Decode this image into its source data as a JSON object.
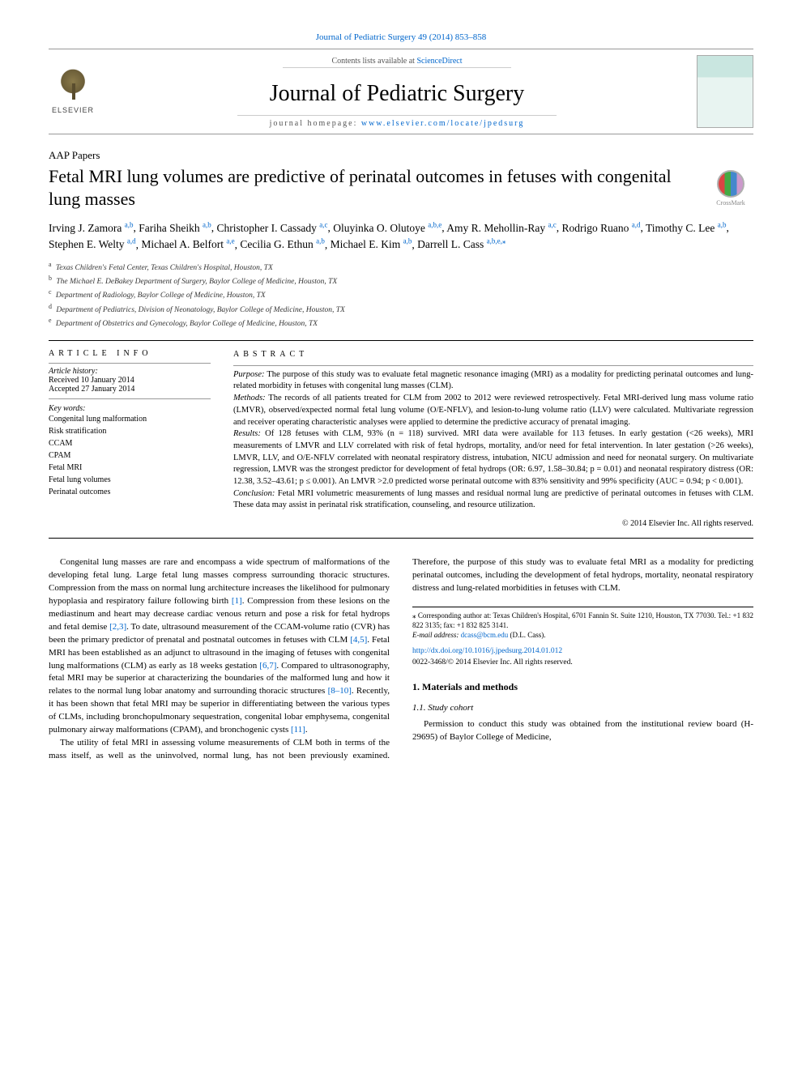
{
  "topCitation": "Journal of Pediatric Surgery 49 (2014) 853–858",
  "header": {
    "contentsLine_pre": "Contents lists available at ",
    "contentsLine_link": "ScienceDirect",
    "journalName": "Journal of Pediatric Surgery",
    "homepage_pre": "journal homepage: ",
    "homepage_link": "www.elsevier.com/locate/jpedsurg",
    "elsevierLabel": "ELSEVIER",
    "coverLabel": "Journal of Pediatric Surgery"
  },
  "articleType": "AAP Papers",
  "title": "Fetal MRI lung volumes are predictive of perinatal outcomes in fetuses with congenital lung masses",
  "crossmarkLabel": "CrossMark",
  "authors": [
    {
      "name": "Irving J. Zamora",
      "aff": "a,b"
    },
    {
      "name": "Fariha Sheikh",
      "aff": "a,b"
    },
    {
      "name": "Christopher I. Cassady",
      "aff": "a,c"
    },
    {
      "name": "Oluyinka O. Olutoye",
      "aff": "a,b,e"
    },
    {
      "name": "Amy R. Mehollin-Ray",
      "aff": "a,c"
    },
    {
      "name": "Rodrigo Ruano",
      "aff": "a,d"
    },
    {
      "name": "Timothy C. Lee",
      "aff": "a,b"
    },
    {
      "name": "Stephen E. Welty",
      "aff": "a,d"
    },
    {
      "name": "Michael A. Belfort",
      "aff": "a,e"
    },
    {
      "name": "Cecilia G. Ethun",
      "aff": "a,b"
    },
    {
      "name": "Michael E. Kim",
      "aff": "a,b"
    },
    {
      "name": "Darrell L. Cass",
      "aff": "a,b,e,",
      "star": true
    }
  ],
  "affiliations": [
    {
      "key": "a",
      "text": "Texas Children's Fetal Center, Texas Children's Hospital, Houston, TX"
    },
    {
      "key": "b",
      "text": "The Michael E. DeBakey Department of Surgery, Baylor College of Medicine, Houston, TX"
    },
    {
      "key": "c",
      "text": "Department of Radiology, Baylor College of Medicine, Houston, TX"
    },
    {
      "key": "d",
      "text": "Department of Pediatrics, Division of Neonatology, Baylor College of Medicine, Houston, TX"
    },
    {
      "key": "e",
      "text": "Department of Obstetrics and Gynecology, Baylor College of Medicine, Houston, TX"
    }
  ],
  "info": {
    "heading": "ARTICLE INFO",
    "historyLabel": "Article history:",
    "received": "Received 10 January 2014",
    "accepted": "Accepted 27 January 2014",
    "keywordsLabel": "Key words:",
    "keywords": [
      "Congenital lung malformation",
      "Risk stratification",
      "CCAM",
      "CPAM",
      "Fetal MRI",
      "Fetal lung volumes",
      "Perinatal outcomes"
    ]
  },
  "abstract": {
    "heading": "ABSTRACT",
    "purposeLabel": "Purpose:",
    "purpose": " The purpose of this study was to evaluate fetal magnetic resonance imaging (MRI) as a modality for predicting perinatal outcomes and lung-related morbidity in fetuses with congenital lung masses (CLM).",
    "methodsLabel": "Methods:",
    "methods": " The records of all patients treated for CLM from 2002 to 2012 were reviewed retrospectively. Fetal MRI-derived lung mass volume ratio (LMVR), observed/expected normal fetal lung volume (O/E-NFLV), and lesion-to-lung volume ratio (LLV) were calculated. Multivariate regression and receiver operating characteristic analyses were applied to determine the predictive accuracy of prenatal imaging.",
    "resultsLabel": "Results:",
    "results": " Of 128 fetuses with CLM, 93% (n = 118) survived. MRI data were available for 113 fetuses. In early gestation (<26 weeks), MRI measurements of LMVR and LLV correlated with risk of fetal hydrops, mortality, and/or need for fetal intervention. In later gestation (>26 weeks), LMVR, LLV, and O/E-NFLV correlated with neonatal respiratory distress, intubation, NICU admission and need for neonatal surgery. On multivariate regression, LMVR was the strongest predictor for development of fetal hydrops (OR: 6.97, 1.58–30.84; p = 0.01) and neonatal respiratory distress (OR: 12.38, 3.52–43.61; p ≤ 0.001). An LMVR >2.0 predicted worse perinatal outcome with 83% sensitivity and 99% specificity (AUC = 0.94; p < 0.001).",
    "conclusionLabel": "Conclusion:",
    "conclusion": " Fetal MRI volumetric measurements of lung masses and residual normal lung are predictive of perinatal outcomes in fetuses with CLM. These data may assist in perinatal risk stratification, counseling, and resource utilization.",
    "copyright": "© 2014 Elsevier Inc. All rights reserved."
  },
  "body": {
    "p1a": "Congenital lung masses are rare and encompass a wide spectrum of malformations of the developing fetal lung. Large fetal lung masses compress surrounding thoracic structures. Compression from the mass on normal lung architecture increases the likelihood for pulmonary hypoplasia and respiratory failure following birth ",
    "r1": "[1]",
    "p1b": ". Compression from these lesions on the mediastinum and heart may decrease cardiac venous return and pose a risk for fetal hydrops and fetal demise ",
    "r23": "[2,3]",
    "p1c": ". To date, ultrasound measurement of the CCAM-volume ratio (CVR) has been the primary predictor of prenatal and postnatal outcomes in fetuses with CLM ",
    "r45": "[4,5]",
    "p1d": ". Fetal MRI has been established as an adjunct to ultrasound in the imaging of fetuses with congenital lung malformations (CLM) as early as 18 weeks gestation ",
    "r67": "[6,7]",
    "p1e": ". Compared to ultrasonography, fetal MRI may be superior at characterizing the boundaries of the malformed lung and how it relates to the normal lung lobar anatomy and surrounding thoracic structures ",
    "r810": "[8–10]",
    "p1f": ". Recently, it has been shown that fetal MRI may be superior in differentiating between the various types of CLMs, including bronchopulmonary sequestration, congenital lobar emphysema, congenital pulmonary airway malformations (CPAM), and bronchogenic cysts ",
    "r11": "[11]",
    "p1g": ".",
    "p2": "The utility of fetal MRI in assessing volume measurements of CLM both in terms of the mass itself, as well as the uninvolved, normal lung, has not been previously examined. Therefore, the purpose of this study was to evaluate fetal MRI as a modality for predicting perinatal outcomes, including the development of fetal hydrops, mortality, neonatal respiratory distress and lung-related morbidities in fetuses with CLM.",
    "h1": "1. Materials and methods",
    "h11": "1.1. Study cohort",
    "p3": "Permission to conduct this study was obtained from the institutional review board (H-29695) of Baylor College of Medicine,"
  },
  "footnote": {
    "corr": "⁎ Corresponding author at: Texas Children's Hospital, 6701 Fannin St. Suite 1210, Houston, TX 77030. Tel.: +1 832 822 3135; fax: +1 832 825 3141.",
    "emailLabel": "E-mail address: ",
    "email": "dcass@bcm.edu",
    "emailSuffix": " (D.L. Cass)."
  },
  "doi": {
    "link": "http://dx.doi.org/10.1016/j.jpedsurg.2014.01.012",
    "issn": "0022-3468/© 2014 Elsevier Inc. All rights reserved."
  },
  "colors": {
    "link": "#0066cc",
    "rule": "#000000",
    "thinRule": "#999999",
    "text": "#000000"
  }
}
